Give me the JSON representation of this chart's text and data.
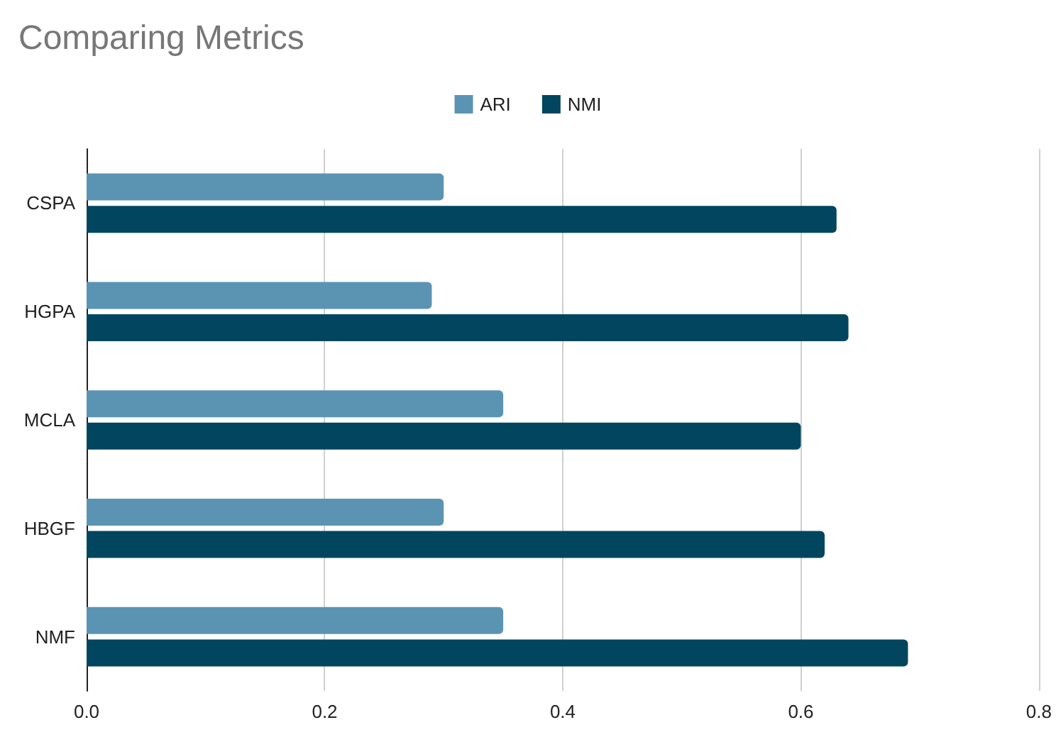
{
  "chart_data": {
    "type": "bar",
    "title": "Comparing Metrics",
    "orientation": "horizontal",
    "categories": [
      "CSPA",
      "HGPA",
      "MCLA",
      "HBGF",
      "NMF"
    ],
    "series": [
      {
        "name": "ARI",
        "color": "#5b94b3",
        "values": [
          0.3,
          0.29,
          0.35,
          0.3,
          0.35
        ]
      },
      {
        "name": "NMI",
        "color": "#01465e",
        "values": [
          0.63,
          0.64,
          0.6,
          0.62,
          0.69
        ]
      }
    ],
    "xlim": [
      0,
      0.8
    ],
    "xticks": [
      "0.0",
      0.2,
      0.4,
      0.6,
      0.8
    ],
    "grid": "x",
    "legend": "top"
  }
}
